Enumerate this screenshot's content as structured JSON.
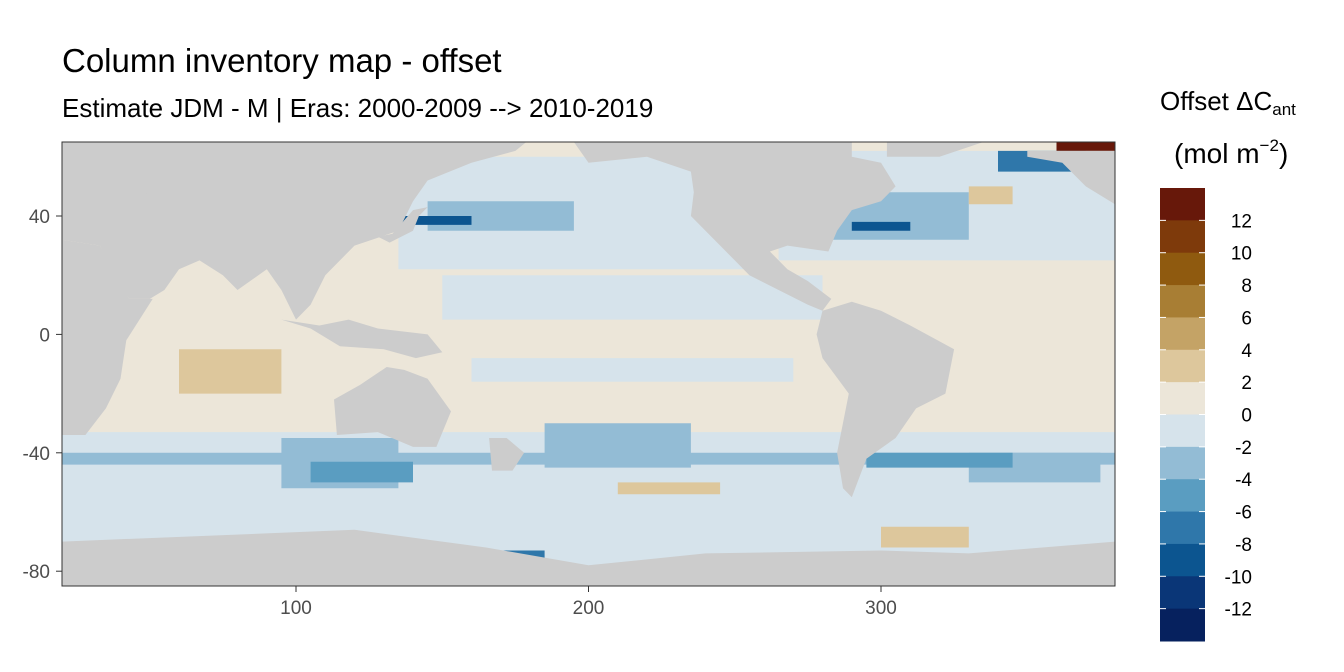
{
  "chart_data": {
    "type": "heatmap",
    "title": "Column inventory map - offset",
    "subtitle": "Estimate JDM - M | Eras: 2000-2009 --> 2010-2019",
    "legend": {
      "title_main": "Offset ΔC",
      "title_sub": "ant",
      "unit_main": "(mol m",
      "unit_sup": "−2",
      "unit_end": ")",
      "placement": "right",
      "breaks": [
        12,
        10,
        8,
        6,
        4,
        2,
        0,
        -2,
        -4,
        -6,
        -8,
        -10,
        -12
      ],
      "colors": [
        "#67180a",
        "#7e3a0b",
        "#8f5a0f",
        "#a87e34",
        "#c4a366",
        "#ddc79c",
        "#ece6d9",
        "#d6e3eb",
        "#93bcd5",
        "#5a9dc1",
        "#2f77aa",
        "#0c5590",
        "#0a3677",
        "#06215e"
      ]
    },
    "x_ticks": [
      100,
      200,
      300
    ],
    "y_ticks": [
      40,
      0,
      -40,
      -80
    ],
    "xlim": [
      20,
      380
    ],
    "ylim": [
      -85,
      65
    ],
    "land_color": "#cccccc",
    "nodata_color": "#ffffff",
    "grid": false
  }
}
